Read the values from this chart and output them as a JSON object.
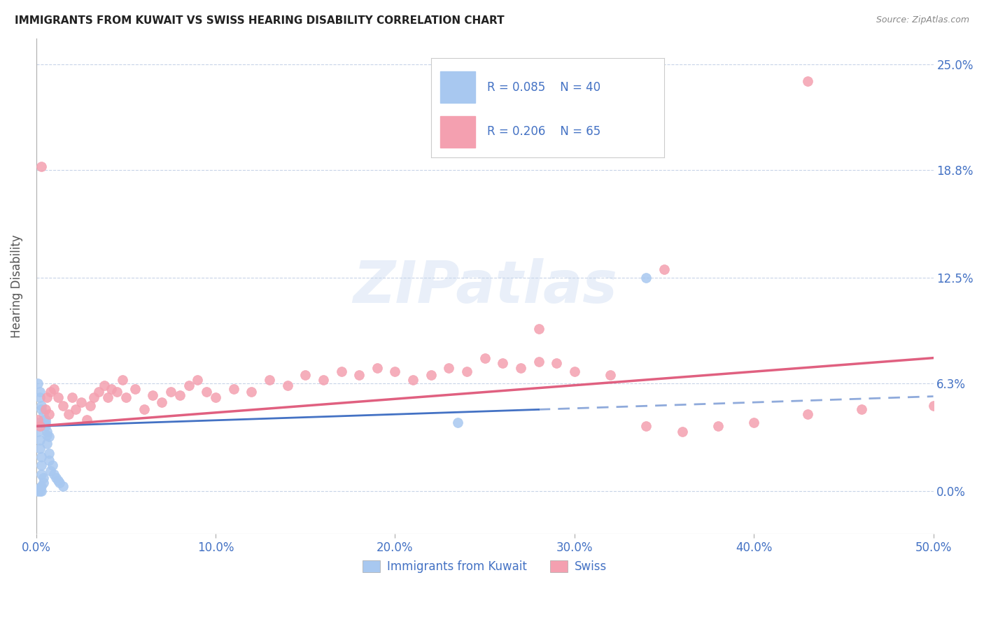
{
  "title": "IMMIGRANTS FROM KUWAIT VS SWISS HEARING DISABILITY CORRELATION CHART",
  "source": "Source: ZipAtlas.com",
  "xlabel_ticks": [
    "0.0%",
    "10.0%",
    "20.0%",
    "30.0%",
    "40.0%",
    "50.0%"
  ],
  "xlabel_vals": [
    0.0,
    0.1,
    0.2,
    0.3,
    0.4,
    0.5
  ],
  "ylabel": "Hearing Disability",
  "ytick_labels": [
    "0.0%",
    "6.3%",
    "12.5%",
    "18.8%",
    "25.0%"
  ],
  "ytick_vals": [
    0.0,
    0.063,
    0.125,
    0.188,
    0.25
  ],
  "xlim": [
    0.0,
    0.5
  ],
  "ylim": [
    -0.025,
    0.265
  ],
  "blue_R": 0.085,
  "blue_N": 40,
  "pink_R": 0.206,
  "pink_N": 65,
  "blue_color": "#a8c8f0",
  "pink_color": "#f4a0b0",
  "blue_line_color": "#4472c4",
  "pink_line_color": "#e06080",
  "grid_color": "#c8d4e8",
  "background_color": "#ffffff",
  "blue_scatter_x": [
    0.001,
    0.001,
    0.002,
    0.002,
    0.003,
    0.003,
    0.003,
    0.004,
    0.004,
    0.005,
    0.005,
    0.006,
    0.006,
    0.007,
    0.007,
    0.008,
    0.009,
    0.01,
    0.011,
    0.012,
    0.013,
    0.015,
    0.002,
    0.003,
    0.004,
    0.005,
    0.006,
    0.007,
    0.001,
    0.002,
    0.003,
    0.004,
    0.003,
    0.002,
    0.001,
    0.001,
    0.002,
    0.003,
    0.235,
    0.34
  ],
  "blue_scatter_y": [
    0.04,
    0.035,
    0.03,
    0.025,
    0.02,
    0.015,
    0.01,
    0.008,
    0.005,
    0.042,
    0.038,
    0.033,
    0.028,
    0.022,
    0.018,
    0.012,
    0.015,
    0.01,
    0.008,
    0.006,
    0.005,
    0.003,
    0.055,
    0.05,
    0.045,
    0.04,
    0.035,
    0.032,
    0.063,
    0.058,
    0.048,
    0.042,
    0.003,
    0.002,
    0.001,
    0.0,
    0.0,
    0.0,
    0.04,
    0.125
  ],
  "pink_scatter_x": [
    0.001,
    0.002,
    0.005,
    0.006,
    0.007,
    0.008,
    0.01,
    0.012,
    0.015,
    0.018,
    0.02,
    0.022,
    0.025,
    0.028,
    0.03,
    0.032,
    0.035,
    0.038,
    0.04,
    0.042,
    0.045,
    0.048,
    0.05,
    0.055,
    0.06,
    0.065,
    0.07,
    0.075,
    0.08,
    0.085,
    0.09,
    0.095,
    0.1,
    0.11,
    0.12,
    0.13,
    0.14,
    0.15,
    0.16,
    0.17,
    0.18,
    0.19,
    0.2,
    0.21,
    0.22,
    0.23,
    0.24,
    0.25,
    0.26,
    0.27,
    0.28,
    0.29,
    0.3,
    0.32,
    0.34,
    0.36,
    0.38,
    0.4,
    0.43,
    0.46,
    0.003,
    0.28,
    0.5,
    0.43,
    0.35
  ],
  "pink_scatter_y": [
    0.042,
    0.038,
    0.048,
    0.055,
    0.045,
    0.058,
    0.06,
    0.055,
    0.05,
    0.045,
    0.055,
    0.048,
    0.052,
    0.042,
    0.05,
    0.055,
    0.058,
    0.062,
    0.055,
    0.06,
    0.058,
    0.065,
    0.055,
    0.06,
    0.048,
    0.056,
    0.052,
    0.058,
    0.056,
    0.062,
    0.065,
    0.058,
    0.055,
    0.06,
    0.058,
    0.065,
    0.062,
    0.068,
    0.065,
    0.07,
    0.068,
    0.072,
    0.07,
    0.065,
    0.068,
    0.072,
    0.07,
    0.078,
    0.075,
    0.072,
    0.076,
    0.075,
    0.07,
    0.068,
    0.038,
    0.035,
    0.038,
    0.04,
    0.045,
    0.048,
    0.19,
    0.095,
    0.05,
    0.24,
    0.13
  ],
  "watermark": "ZIPatlas"
}
